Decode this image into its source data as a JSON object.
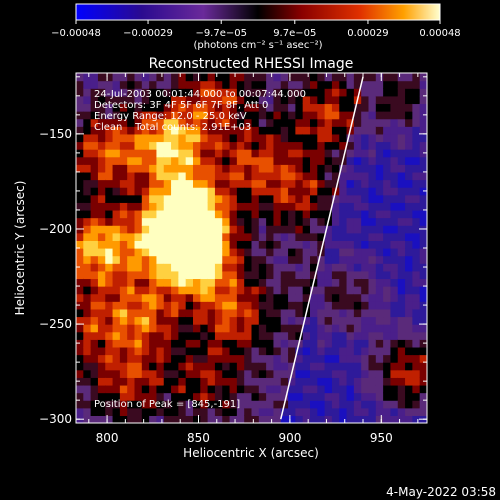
{
  "chart_data": {
    "type": "heatmap",
    "title": "Reconstructed RHESSI Image",
    "xlabel": "Heliocentric X (arcsec)",
    "ylabel": "Heliocentric Y (arcsec)",
    "xlim": [
      783,
      975
    ],
    "ylim": [
      -302,
      -118
    ],
    "xticks": [
      800,
      850,
      900,
      950
    ],
    "xtick_labels": [
      "800",
      "850",
      "900",
      "950"
    ],
    "yticks": [
      -150,
      -200,
      -250,
      -300
    ],
    "ytick_labels": [
      "−150",
      "−200",
      "−250",
      "−300"
    ],
    "colorbar": {
      "range": [
        -0.00048,
        0.00048
      ],
      "ticks": [
        -0.00048,
        -0.00029,
        -9.7e-05,
        9.7e-05,
        0.00029,
        0.00048
      ],
      "tick_labels": [
        "−0.00048",
        "−0.00029",
        "−9.7e−05",
        "9.7e−05",
        "0.00029",
        "0.00048"
      ],
      "unit_label": "(photons cm⁻² s⁻¹ asec⁻²)",
      "colors": [
        "#0000ff",
        "#3a0a8a",
        "#6a2a9a",
        "#000000",
        "#8a0000",
        "#e03000",
        "#ffa000",
        "#ffffd0"
      ]
    },
    "info_lines": [
      "24-Jul-2003 00:01:44.000 to 00:07:44.000",
      "Detectors: 3F 4F 5F 6F 7F 8F, Att 0",
      "Energy Range: 12.0 - 25.0 keV",
      "Clean    Total counts: 2.91E+03"
    ],
    "peak_label": "Position of Peak = [845,-191]",
    "limb_line": {
      "points": [
        [
          895,
          -300
        ],
        [
          940,
          -120
        ]
      ]
    },
    "sources": [
      {
        "x": 845,
        "y": -191,
        "level": 1.0
      },
      {
        "x": 850,
        "y": -215,
        "level": 0.95
      },
      {
        "x": 835,
        "y": -155,
        "level": 0.8
      },
      {
        "x": 795,
        "y": -210,
        "level": 0.75
      },
      {
        "x": 800,
        "y": -160,
        "level": 0.55
      },
      {
        "x": 820,
        "y": -245,
        "level": 0.55
      },
      {
        "x": 812,
        "y": -280,
        "level": 0.45
      },
      {
        "x": 870,
        "y": -245,
        "level": 0.5
      },
      {
        "x": 880,
        "y": -165,
        "level": 0.45
      },
      {
        "x": 905,
        "y": -180,
        "level": 0.4
      },
      {
        "x": 860,
        "y": -130,
        "level": 0.45
      },
      {
        "x": 920,
        "y": -140,
        "level": 0.45
      },
      {
        "x": 965,
        "y": -275,
        "level": 0.65
      },
      {
        "x": 960,
        "y": -130,
        "level": 0.4
      },
      {
        "x": 930,
        "y": -235,
        "level": 0.35
      },
      {
        "x": 830,
        "y": -205,
        "level": 0.6
      },
      {
        "x": 790,
        "y": -250,
        "level": 0.4
      },
      {
        "x": 855,
        "y": -280,
        "level": 0.35
      }
    ]
  },
  "timestamp": "4-May-2022 03:58"
}
